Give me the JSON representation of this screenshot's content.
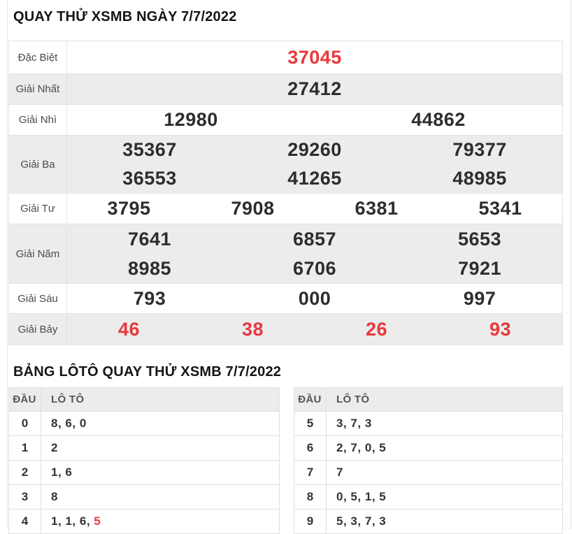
{
  "results": {
    "title": "QUAY THỬ XSMB NGÀY 7/7/2022",
    "rows": [
      {
        "label": "Đặc Biệt",
        "highlight": true,
        "lines": [
          [
            "37045"
          ]
        ]
      },
      {
        "label": "Giải Nhất",
        "highlight": false,
        "lines": [
          [
            "27412"
          ]
        ]
      },
      {
        "label": "Giải Nhì",
        "highlight": false,
        "lines": [
          [
            "12980",
            "44862"
          ]
        ]
      },
      {
        "label": "Giải Ba",
        "highlight": false,
        "lines": [
          [
            "35367",
            "29260",
            "79377"
          ],
          [
            "36553",
            "41265",
            "48985"
          ]
        ]
      },
      {
        "label": "Giải Tư",
        "highlight": false,
        "lines": [
          [
            "3795",
            "7908",
            "6381",
            "5341"
          ]
        ]
      },
      {
        "label": "Giải Năm",
        "highlight": false,
        "lines": [
          [
            "7641",
            "6857",
            "5653"
          ],
          [
            "8985",
            "6706",
            "7921"
          ]
        ]
      },
      {
        "label": "Giải Sáu",
        "highlight": false,
        "lines": [
          [
            "793",
            "000",
            "997"
          ]
        ]
      },
      {
        "label": "Giải Bảy",
        "highlight": true,
        "lines": [
          [
            "46",
            "38",
            "26",
            "93"
          ]
        ]
      }
    ]
  },
  "loto": {
    "title": "BẢNG LÔTÔ QUAY THỬ XSMB 7/7/2022",
    "col_dau": "ĐẦU",
    "col_loto": "LÔ TÔ",
    "tables": [
      {
        "rows": [
          {
            "dau": "0",
            "values": [
              {
                "v": "8"
              },
              {
                "v": "6"
              },
              {
                "v": "0"
              }
            ]
          },
          {
            "dau": "1",
            "values": [
              {
                "v": "2"
              }
            ]
          },
          {
            "dau": "2",
            "values": [
              {
                "v": "1"
              },
              {
                "v": "6"
              }
            ]
          },
          {
            "dau": "3",
            "values": [
              {
                "v": "8"
              }
            ]
          },
          {
            "dau": "4",
            "values": [
              {
                "v": "1"
              },
              {
                "v": "1"
              },
              {
                "v": "6"
              },
              {
                "v": "5",
                "hl": true
              }
            ]
          }
        ]
      },
      {
        "rows": [
          {
            "dau": "5",
            "values": [
              {
                "v": "3"
              },
              {
                "v": "7"
              },
              {
                "v": "3"
              }
            ]
          },
          {
            "dau": "6",
            "values": [
              {
                "v": "2"
              },
              {
                "v": "7"
              },
              {
                "v": "0"
              },
              {
                "v": "5"
              }
            ]
          },
          {
            "dau": "7",
            "values": [
              {
                "v": "7"
              }
            ]
          },
          {
            "dau": "8",
            "values": [
              {
                "v": "0"
              },
              {
                "v": "5"
              },
              {
                "v": "1"
              },
              {
                "v": "5"
              }
            ]
          },
          {
            "dau": "9",
            "values": [
              {
                "v": "5"
              },
              {
                "v": "3"
              },
              {
                "v": "7"
              },
              {
                "v": "3"
              }
            ]
          }
        ]
      }
    ]
  },
  "colors": {
    "highlight_red": "#e8393d",
    "row_shade": "#ececec"
  }
}
